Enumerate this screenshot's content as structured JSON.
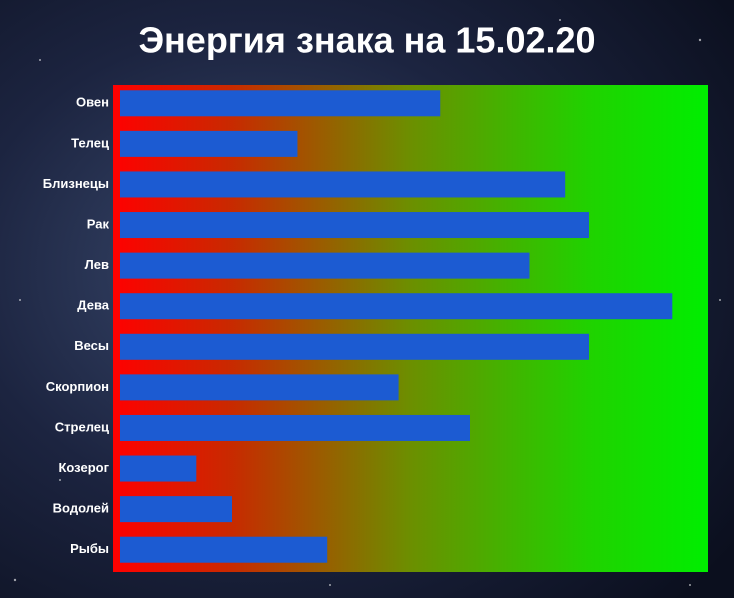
{
  "chart_data": {
    "type": "barh",
    "title": "Энергия знака на 15.02.20",
    "categories": [
      "Овен",
      "Телец",
      "Близнецы",
      "Рак",
      "Лев",
      "Дева",
      "Весы",
      "Скорпион",
      "Стрелец",
      "Козерог",
      "Водолей",
      "Рыбы"
    ],
    "values": [
      55,
      31,
      76,
      80,
      70,
      94,
      80,
      48,
      60,
      14,
      20,
      36
    ],
    "color": "#1c5bd2",
    "xlim": [
      0,
      100
    ]
  }
}
